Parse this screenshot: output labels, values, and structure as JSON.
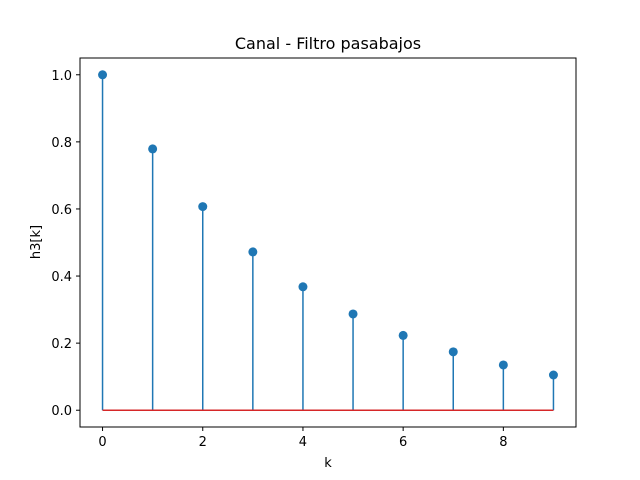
{
  "chart_data": {
    "type": "stem",
    "title": "Canal - Filtro pasabajos",
    "xlabel": "k",
    "ylabel": "h3[k]",
    "xlim": [
      -0.45,
      9.45
    ],
    "ylim": [
      -0.05,
      1.05
    ],
    "x_ticks": [
      0,
      2,
      4,
      6,
      8
    ],
    "y_ticks": [
      0.0,
      0.2,
      0.4,
      0.6,
      0.8,
      1.0
    ],
    "x_tick_labels": [
      "0",
      "2",
      "4",
      "6",
      "8"
    ],
    "y_tick_labels": [
      "0.0",
      "0.2",
      "0.4",
      "0.6",
      "0.8",
      "1.0"
    ],
    "x": [
      0,
      1,
      2,
      3,
      4,
      5,
      6,
      7,
      8,
      9
    ],
    "values": [
      1.0,
      0.779,
      0.607,
      0.472,
      0.368,
      0.287,
      0.223,
      0.174,
      0.135,
      0.105
    ],
    "grid": false,
    "stem_color": "#1f77b4",
    "baseline_color": "#d62728"
  }
}
